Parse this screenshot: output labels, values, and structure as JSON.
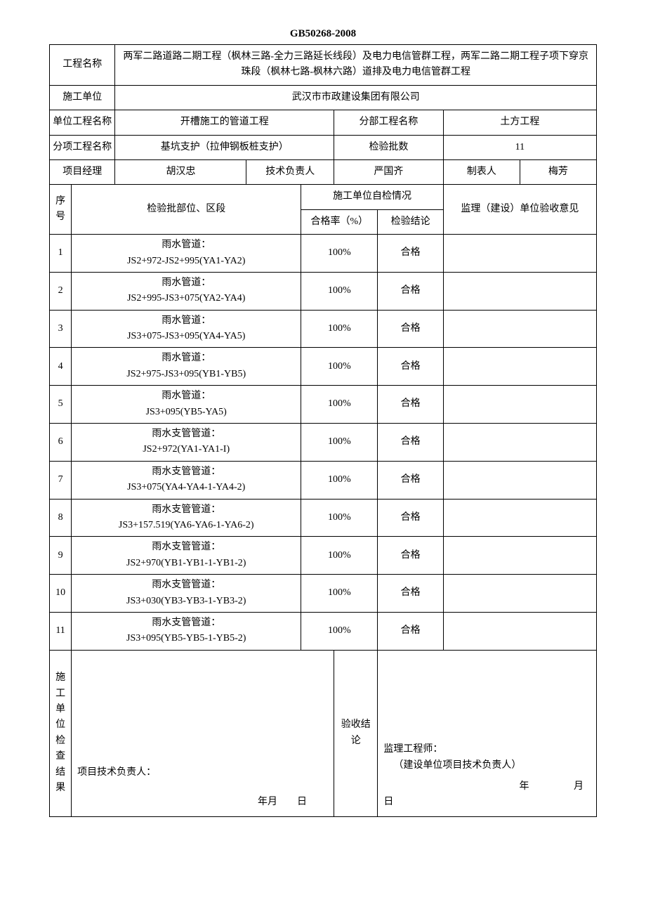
{
  "doc": {
    "title": "GB50268-2008"
  },
  "header": {
    "project_name_label": "工程名称",
    "project_name_value": "两军二路道路二期工程（枫林三路-全力三路延长线段）及电力电信管群工程，两军二路二期工程子项下穿京珠段（枫林七路-枫林六路）道排及电力电信管群工程",
    "contractor_label": "施工单位",
    "contractor_value": "武汉市市政建设集团有限公司",
    "unit_proj_label": "单位工程名称",
    "unit_proj_value": "开槽施工的管道工程",
    "sub_proj_label": "分部工程名称",
    "sub_proj_value": "土方工程",
    "item_proj_label": "分项工程名称",
    "item_proj_value": "基坑支护（拉伸钢板桩支护）",
    "batch_count_label": "检验批数",
    "batch_count_value": "11",
    "pm_label": "项目经理",
    "pm_value": "胡汉忠",
    "tech_lead_label": "技术负责人",
    "tech_lead_value": "严国齐",
    "preparer_label": "制表人",
    "preparer_value": "梅芳"
  },
  "table_head": {
    "seq": "序号",
    "location": "检验批部位、区段",
    "self_check": "施工单位自检情况",
    "pass_rate": "合格率（%）",
    "conclusion": "检验结论",
    "supervisor_opinion": "监理（建设）单位验收意见"
  },
  "rows": [
    {
      "seq": "1",
      "loc_line1": "雨水管道：",
      "loc_line2": "JS2+972-JS2+995(YA1-YA2)",
      "rate": "100%",
      "concl": "合格"
    },
    {
      "seq": "2",
      "loc_line1": "雨水管道：",
      "loc_line2": "JS2+995-JS3+075(YA2-YA4)",
      "rate": "100%",
      "concl": "合格"
    },
    {
      "seq": "3",
      "loc_line1": "雨水管道：",
      "loc_line2": "JS3+075-JS3+095(YA4-YA5)",
      "rate": "100%",
      "concl": "合格"
    },
    {
      "seq": "4",
      "loc_line1": "雨水管道：",
      "loc_line2": "JS2+975-JS3+095(YB1-YB5)",
      "rate": "100%",
      "concl": "合格"
    },
    {
      "seq": "5",
      "loc_line1": "雨水管道：",
      "loc_line2": "JS3+095(YB5-YA5)",
      "rate": "100%",
      "concl": "合格"
    },
    {
      "seq": "6",
      "loc_line1": "雨水支管管道：",
      "loc_line2": "JS2+972(YA1-YA1-I)",
      "rate": "100%",
      "concl": "合格"
    },
    {
      "seq": "7",
      "loc_line1": "雨水支管管道：",
      "loc_line2": "JS3+075(YA4-YA4-1-YA4-2)",
      "rate": "100%",
      "concl": "合格"
    },
    {
      "seq": "8",
      "loc_line1": "雨水支管管道：",
      "loc_line2": "JS3+157.519(YA6-YA6-1-YA6-2)",
      "rate": "100%",
      "concl": "合格"
    },
    {
      "seq": "9",
      "loc_line1": "雨水支管管道：",
      "loc_line2": "JS2+970(YB1-YB1-1-YB1-2)",
      "rate": "100%",
      "concl": "合格"
    },
    {
      "seq": "10",
      "loc_line1": "雨水支管管道：",
      "loc_line2": "JS3+030(YB3-YB3-1-YB3-2)",
      "rate": "100%",
      "concl": "合格"
    },
    {
      "seq": "11",
      "loc_line1": "雨水支管管道：",
      "loc_line2": "JS3+095(YB5-YB5-1-YB5-2)",
      "rate": "100%",
      "concl": "合格"
    }
  ],
  "footer": {
    "left_label": "施工单位检查结果",
    "left_sig_label": "项目技术负责人：",
    "left_date": "年月　　日",
    "mid_label": "验收结论",
    "right_line1": "监理工程师：",
    "right_line2": "（建设单位项目技术负责人）",
    "right_date_year": "年",
    "right_date_month": "月",
    "right_date_day": "日"
  }
}
